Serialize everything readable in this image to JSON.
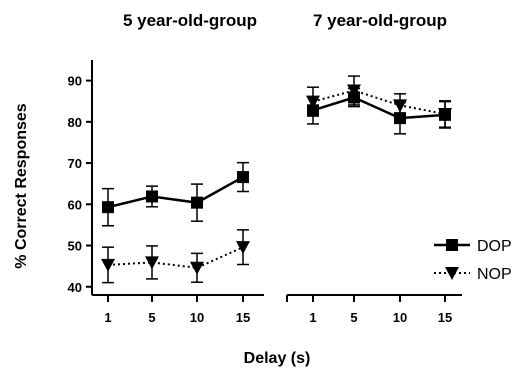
{
  "chart_data": {
    "type": "line",
    "ylabel": "% Correct Responses",
    "xlabel": "Delay (s)",
    "ylim": [
      38,
      95
    ],
    "yticks": [
      40,
      50,
      60,
      70,
      80,
      90
    ],
    "categories": [
      "1",
      "5",
      "10",
      "15"
    ],
    "legend_position": "right",
    "grid": false,
    "panels": [
      {
        "title": "5 year-old-group",
        "series": [
          {
            "name": "DOP",
            "marker": "square",
            "line": "solid",
            "values": [
              59.3,
              61.9,
              60.4,
              66.6
            ],
            "errors": [
              4.5,
              2.5,
              4.5,
              3.5
            ]
          },
          {
            "name": "NOP",
            "marker": "triangle-down",
            "line": "dotted",
            "values": [
              45.3,
              45.9,
              44.6,
              49.6
            ],
            "errors": [
              4.3,
              4.0,
              3.5,
              4.2
            ]
          }
        ]
      },
      {
        "title": "7 year-old-group",
        "series": [
          {
            "name": "DOP",
            "marker": "square",
            "line": "solid",
            "values": [
              82.8,
              85.9,
              80.9,
              81.7
            ],
            "errors": [
              3.3,
              2.2,
              3.8,
              3.2
            ]
          },
          {
            "name": "NOP",
            "marker": "triangle-down",
            "line": "dotted",
            "values": [
              84.9,
              87.6,
              84.0,
              81.9
            ],
            "errors": [
              3.5,
              3.5,
              2.8,
              3.2
            ]
          }
        ]
      }
    ]
  }
}
